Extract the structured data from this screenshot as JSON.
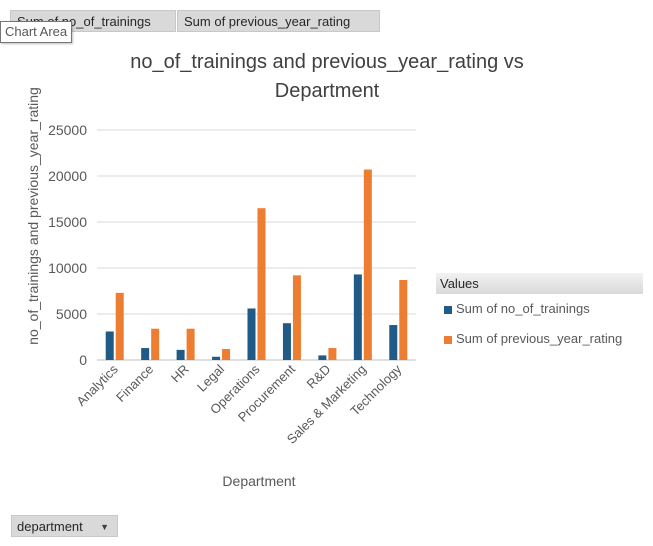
{
  "field_buttons": {
    "first": "Sum of no_of_trainings",
    "second": "Sum of previous_year_rating"
  },
  "chart_area_tooltip": "Chart Area",
  "legend": {
    "header": "Values",
    "items": [
      "Sum of no_of_trainings",
      "Sum of previous_year_rating"
    ]
  },
  "filter": {
    "label": "department",
    "icon": "dropdown-arrow-icon"
  },
  "colors": {
    "series1": "#1f5b86",
    "series2": "#ed7d31",
    "gridline": "#d9d9d9",
    "axis": "#bfbfbf"
  },
  "chart_data": {
    "type": "bar",
    "title": "no_of_trainings and previous_year_rating vs Department",
    "xlabel": "Department",
    "ylabel": "no_of_trainings and previous_year_rating",
    "categories": [
      "Analytics",
      "Finance",
      "HR",
      "Legal",
      "Operations",
      "Procurement",
      "R&D",
      "Sales & Marketing",
      "Technology"
    ],
    "series": [
      {
        "name": "Sum of no_of_trainings",
        "values": [
          3100,
          1300,
          1100,
          350,
          5600,
          4000,
          500,
          9300,
          3800
        ]
      },
      {
        "name": "Sum of previous_year_rating",
        "values": [
          7300,
          3400,
          3400,
          1200,
          16500,
          9200,
          1300,
          20700,
          8700
        ]
      }
    ],
    "ylim": [
      0,
      25000
    ],
    "yticks": [
      "0",
      "5000",
      "10000",
      "15000",
      "20000",
      "25000"
    ],
    "grid": true,
    "legend_position": "right"
  }
}
